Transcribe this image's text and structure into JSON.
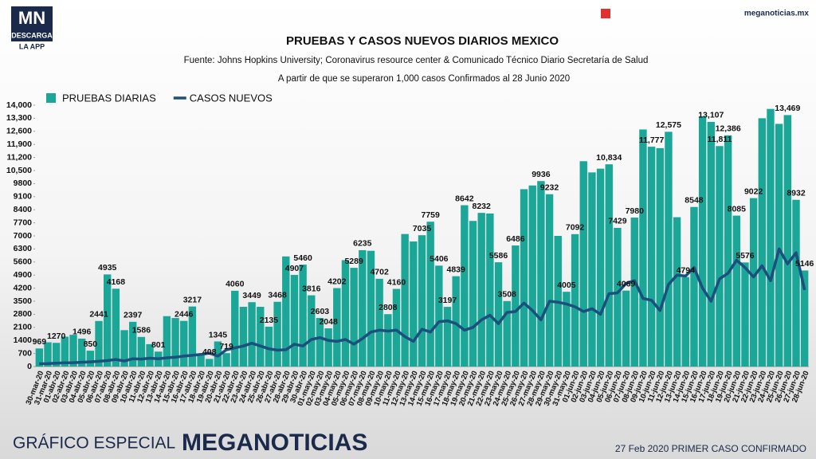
{
  "header": {
    "logo": "MN",
    "logo_line1": "DESCARGA",
    "logo_line2": "LA APP",
    "site": "meganoticias.mx"
  },
  "footer": {
    "left": "GRÁFICO ESPECIAL",
    "brand": "MEGANOTICIAS",
    "note": "27 Feb 2020 PRIMER CASO CONFIRMADO"
  },
  "chart_data": {
    "type": "bar",
    "title": "PRUEBAS Y CASOS NUEVOS DIARIOS MEXICO",
    "source": "Fuente: Johns Hopkins University; Coronavirus resource center & Comunicado Técnico Diario Secretaría de Salud",
    "subtitle": "A partir de que se superaron 1,000 casos Confirmados al 28 Junio 2020",
    "legend": "top-left",
    "grid": false,
    "categories": [
      "30-mar-20",
      "31-mar-20",
      "01-abr-20",
      "02-abr-20",
      "03-abr-20",
      "04-abr-20",
      "05-abr-20",
      "06-abr-20",
      "07-abr-20",
      "08-abr-20",
      "09-abr-20",
      "10-abr-20",
      "11-abr-20",
      "12-abr-20",
      "13-abr-20",
      "14-abr-20",
      "15-abr-20",
      "16-abr-20",
      "17-abr-20",
      "18-abr-20",
      "19-abr-20",
      "20-abr-20",
      "21-abr-20",
      "22-abr-20",
      "23-abr-20",
      "24-abr-20",
      "25-abr-20",
      "26-abr-20",
      "27-abr-20",
      "28-abr-20",
      "29-abr-20",
      "30-abr-20",
      "01-may-20",
      "02-may-20",
      "03-may-20",
      "04-may-20",
      "05-may-20",
      "06-may-20",
      "07-may-20",
      "08-may-20",
      "09-may-20",
      "10-may-20",
      "11-may-20",
      "12-may-20",
      "13-may-20",
      "14-may-20",
      "15-may-20",
      "16-may-20",
      "17-may-20",
      "18-may-20",
      "19-may-20",
      "20-may-20",
      "21-may-20",
      "22-may-20",
      "23-may-20",
      "24-may-20",
      "25-may-20",
      "26-may-20",
      "27-may-20",
      "28-may-20",
      "29-may-20",
      "30-may-20",
      "31-may-20",
      "01-jun-20",
      "02-jun-20",
      "03-jun-20",
      "04-jun-20",
      "05-jun-20",
      "06-jun-20",
      "07-jun-20",
      "08-jun-20",
      "09-jun-20",
      "10-jun-20",
      "11-jun-20",
      "12-jun-20",
      "13-jun-20",
      "14-jun-20",
      "15-jun-20",
      "16-jun-20",
      "17-jun-20",
      "18-jun-20",
      "19-jun-20",
      "20-jun-20",
      "21-jun-20",
      "22-jun-20",
      "23-jun-20",
      "24-jun-20",
      "25-jun-20",
      "26-jun-20",
      "27-jun-20",
      "28-jun-20"
    ],
    "series": [
      {
        "name": "PRUEBAS DIARIAS",
        "color": "#1aa797",
        "type": "bar",
        "values": [
          969,
          1300,
          1270,
          1600,
          1700,
          1496,
          850,
          2441,
          4935,
          4168,
          1950,
          2397,
          1586,
          1200,
          801,
          2700,
          2600,
          2446,
          3217,
          600,
          408,
          1345,
          719,
          4060,
          3200,
          3449,
          3200,
          2135,
          3468,
          5900,
          4907,
          5460,
          3816,
          2603,
          2048,
          4202,
          5700,
          5289,
          6235,
          6200,
          4702,
          2808,
          4160,
          7100,
          6700,
          7035,
          7759,
          5406,
          3197,
          4839,
          8642,
          7800,
          8232,
          8200,
          5586,
          3508,
          6486,
          9500,
          9700,
          9936,
          9232,
          7000,
          4005,
          7092,
          11000,
          10400,
          10600,
          10834,
          7429,
          4069,
          7980,
          12700,
          11777,
          11700,
          12575,
          8000,
          4794,
          8548,
          13400,
          13107,
          11811,
          12386,
          8085,
          5576,
          9022,
          13300,
          13800,
          13000,
          13469,
          8932,
          5146
        ],
        "value_labels": [
          "969",
          null,
          "1270",
          null,
          null,
          "1496",
          "850",
          "2441",
          "4935",
          "4168",
          null,
          "2397",
          "1586",
          null,
          "801",
          null,
          null,
          "2446",
          "3217",
          null,
          "408",
          "1345",
          "719",
          "4060",
          null,
          "3449",
          null,
          "2135",
          "3468",
          null,
          "4907",
          "5460",
          "3816",
          "2603",
          "2048",
          "4202",
          null,
          "5289",
          "6235",
          null,
          "4702",
          "2808",
          "4160",
          null,
          null,
          "7035",
          "7759",
          "5406",
          "3197",
          "4839",
          "8642",
          null,
          "8232",
          null,
          "5586",
          "3508",
          "6486",
          null,
          null,
          "9936",
          "9232",
          null,
          "4005",
          "7092",
          null,
          null,
          null,
          "10,834",
          "7429",
          "4069",
          "7980",
          null,
          "11,777",
          null,
          "12,575",
          null,
          "4794",
          "8548",
          null,
          "13,107",
          "11,811",
          "12,386",
          "8085",
          "5576",
          "9022",
          null,
          null,
          null,
          "13,469",
          "8932",
          "5146"
        ]
      },
      {
        "name": "CASOS NUEVOS",
        "color": "#1b4f7c",
        "type": "line",
        "values": [
          150,
          160,
          180,
          200,
          210,
          230,
          250,
          280,
          320,
          380,
          300,
          420,
          400,
          450,
          420,
          470,
          500,
          560,
          600,
          650,
          720,
          560,
          900,
          1000,
          1100,
          1250,
          1100,
          950,
          880,
          900,
          1200,
          1100,
          1450,
          1550,
          1400,
          1350,
          1450,
          1200,
          1500,
          1850,
          1950,
          1900,
          1950,
          1600,
          1350,
          2000,
          1850,
          2400,
          2450,
          2300,
          1950,
          2100,
          2500,
          2750,
          2300,
          2900,
          2950,
          3400,
          3000,
          2500,
          3500,
          3450,
          3350,
          3200,
          2950,
          3100,
          2800,
          3900,
          3950,
          4450,
          4600,
          3650,
          3550,
          3000,
          4400,
          4900,
          4850,
          5300,
          4200,
          3500,
          4700,
          5000,
          5700,
          5300,
          4800,
          5400,
          4600,
          6300,
          5500,
          6100,
          4100
        ]
      }
    ],
    "ylim": [
      0,
      14000
    ],
    "yticks": [
      0,
      700,
      1400,
      2100,
      2800,
      3500,
      4200,
      4900,
      5600,
      6300,
      7000,
      7700,
      8400,
      9100,
      9800,
      {
        "value": 10500,
        "label": "10,500"
      },
      {
        "value": 11200,
        "label": "11,200"
      },
      {
        "value": 11900,
        "label": "11,900"
      },
      {
        "value": 12600,
        "label": "12,600"
      },
      {
        "value": 13300,
        "label": "13,300"
      },
      {
        "value": 14000,
        "label": "14,000"
      }
    ]
  }
}
